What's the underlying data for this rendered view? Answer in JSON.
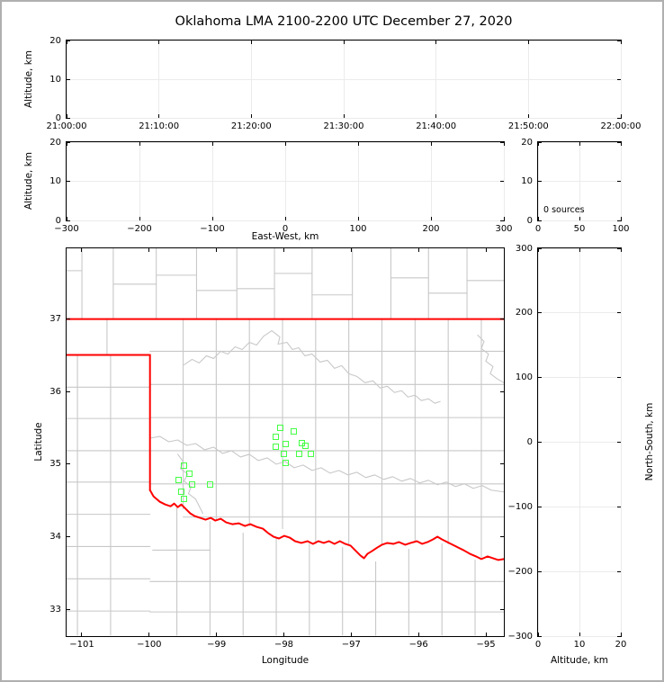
{
  "title": "Oklahoma LMA 2100-2200 UTC December 27, 2020",
  "colors": {
    "state_border": "#ff0000",
    "county_line": "#c8c8c8",
    "source_marker": "#44ff44",
    "grid_line": "#ebebeb",
    "frame_border": "#b0b0b0",
    "spine": "#000000"
  },
  "labels": {
    "altitude_time_ylabel": "Altitude, km",
    "altitude_ew_ylabel": "Altitude, km",
    "east_west_xlabel": "East-West, km",
    "latitude_ylabel": "Latitude",
    "longitude_xlabel": "Longitude",
    "altitude_ns_xlabel": "Altitude, km",
    "north_south_ylabel": "North-South, km"
  },
  "chart_data": {
    "type": "scatter",
    "title": "Oklahoma LMA 2100-2200 UTC December 27, 2020",
    "legend": "none",
    "grid": "faint light-gray gridlines at major ticks in time/EW/histogram/NS panels",
    "panels": [
      {
        "id": "time-height",
        "description": "altitude vs time panel, empty (no sources plotted)",
        "ylabel": "Altitude, km",
        "xlim": [
          0,
          6
        ],
        "ylim": [
          0,
          20
        ],
        "grid": true,
        "xticks": [
          {
            "v": 0,
            "label": "21:00:00"
          },
          {
            "v": 1,
            "label": "21:10:00"
          },
          {
            "v": 2,
            "label": "21:20:00"
          },
          {
            "v": 3,
            "label": "21:30:00"
          },
          {
            "v": 4,
            "label": "21:40:00"
          },
          {
            "v": 5,
            "label": "21:50:00"
          },
          {
            "v": 6,
            "label": "22:00:00"
          }
        ],
        "yticks": [
          {
            "v": 0,
            "label": "0"
          },
          {
            "v": 10,
            "label": "10"
          },
          {
            "v": 20,
            "label": "20"
          }
        ],
        "points": []
      },
      {
        "id": "ew-height",
        "description": "altitude vs east-west distance panel, empty",
        "xlabel": "East-West, km",
        "ylabel": "Altitude, km",
        "xlim": [
          -300,
          300
        ],
        "ylim": [
          0,
          20
        ],
        "grid": true,
        "xticks": [
          {
            "v": -300,
            "label": "−300"
          },
          {
            "v": -200,
            "label": "−200"
          },
          {
            "v": -100,
            "label": "−100"
          },
          {
            "v": 0,
            "label": "0"
          },
          {
            "v": 100,
            "label": "100"
          },
          {
            "v": 200,
            "label": "200"
          },
          {
            "v": 300,
            "label": "300"
          }
        ],
        "yticks": [
          {
            "v": 0,
            "label": "0"
          },
          {
            "v": 10,
            "label": "10"
          },
          {
            "v": 20,
            "label": "20"
          }
        ],
        "points": []
      },
      {
        "id": "alt-histogram",
        "description": "source-count vs altitude histogram panel, empty",
        "annotation": "0 sources",
        "xlim": [
          0,
          100
        ],
        "ylim": [
          0,
          20
        ],
        "grid": true,
        "xticks": [
          {
            "v": 0,
            "label": "0"
          },
          {
            "v": 50,
            "label": "50"
          },
          {
            "v": 100,
            "label": "100"
          }
        ],
        "yticks": [
          {
            "v": 0,
            "label": "0"
          },
          {
            "v": 10,
            "label": "10"
          },
          {
            "v": 20,
            "label": "20"
          }
        ],
        "points": []
      },
      {
        "id": "map",
        "description": "plan-view map of Oklahoma with county lines (gray), state border / Red River (red) and LMA source squares (green)",
        "xlabel": "Longitude",
        "ylabel": "Latitude",
        "xlim": [
          -101.2267,
          -94.7333
        ],
        "ylim": [
          32.6285,
          37.9783
        ],
        "grid": false,
        "xticks": [
          {
            "v": -101,
            "label": "−101"
          },
          {
            "v": -100,
            "label": "−100"
          },
          {
            "v": -99,
            "label": "−99"
          },
          {
            "v": -98,
            "label": "−98"
          },
          {
            "v": -97,
            "label": "−97"
          },
          {
            "v": -96,
            "label": "−96"
          },
          {
            "v": -95,
            "label": "−95"
          }
        ],
        "yticks": [
          {
            "v": 33,
            "label": "33"
          },
          {
            "v": 34,
            "label": "34"
          },
          {
            "v": 35,
            "label": "35"
          },
          {
            "v": 36,
            "label": "36"
          },
          {
            "v": 37,
            "label": "37"
          }
        ],
        "points": [
          {
            "lon": -99.47,
            "lat": 34.98
          },
          {
            "lon": -99.4,
            "lat": 34.86
          },
          {
            "lon": -99.56,
            "lat": 34.77
          },
          {
            "lon": -99.35,
            "lat": 34.71
          },
          {
            "lon": -99.09,
            "lat": 34.71
          },
          {
            "lon": -99.52,
            "lat": 34.61
          },
          {
            "lon": -99.47,
            "lat": 34.52
          },
          {
            "lon": -98.05,
            "lat": 35.49
          },
          {
            "lon": -97.84,
            "lat": 35.45
          },
          {
            "lon": -98.11,
            "lat": 35.37
          },
          {
            "lon": -97.97,
            "lat": 35.27
          },
          {
            "lon": -98.11,
            "lat": 35.24
          },
          {
            "lon": -97.73,
            "lat": 35.29
          },
          {
            "lon": -97.67,
            "lat": 35.25
          },
          {
            "lon": -98.0,
            "lat": 35.13
          },
          {
            "lon": -97.77,
            "lat": 35.13
          },
          {
            "lon": -97.59,
            "lat": 35.13
          },
          {
            "lon": -97.96,
            "lat": 35.01
          }
        ]
      },
      {
        "id": "ns-height",
        "description": "north-south distance vs altitude panel, empty",
        "xlabel": "Altitude, km",
        "ylabel": "North-South, km",
        "xlim": [
          0,
          20
        ],
        "ylim": [
          -300,
          300
        ],
        "grid": true,
        "xticks": [
          {
            "v": 0,
            "label": "0"
          },
          {
            "v": 10,
            "label": "10"
          },
          {
            "v": 20,
            "label": "20"
          }
        ],
        "yticks": [
          {
            "v": -300,
            "label": "−300"
          },
          {
            "v": -200,
            "label": "−200"
          },
          {
            "v": -100,
            "label": "−100"
          },
          {
            "v": 0,
            "label": "0"
          },
          {
            "v": 100,
            "label": "100"
          },
          {
            "v": 200,
            "label": "200"
          },
          {
            "v": 300,
            "label": "300"
          }
        ],
        "points": []
      }
    ]
  }
}
